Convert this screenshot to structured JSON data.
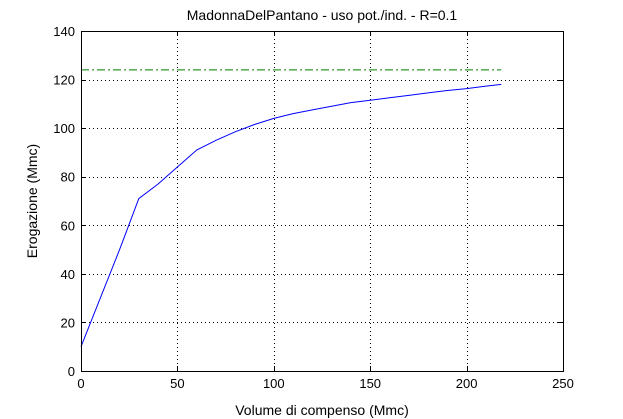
{
  "chart_data": {
    "type": "line",
    "title": "MadonnaDelPantano  -  uso pot./ind.  -   R=0.1",
    "xlabel": "Volume di compenso (Mmc)",
    "ylabel": "Erogazione (Mmc)",
    "xlim": [
      0,
      250
    ],
    "ylim": [
      0,
      140
    ],
    "xticks": [
      0,
      50,
      100,
      150,
      200,
      250
    ],
    "yticks": [
      0,
      20,
      40,
      60,
      80,
      100,
      120,
      140
    ],
    "grid": true,
    "series": [
      {
        "color": "#0000ff",
        "style": "solid",
        "x": [
          0,
          10,
          20,
          30,
          40,
          50,
          60,
          70,
          80,
          90,
          100,
          110,
          120,
          130,
          140,
          150,
          160,
          170,
          180,
          190,
          200,
          210,
          218
        ],
        "y": [
          10,
          30,
          50,
          71,
          77,
          84,
          91,
          95,
          98.5,
          101.5,
          104,
          106,
          107.5,
          109,
          110.5,
          111.5,
          112.5,
          113.5,
          114.5,
          115.5,
          116.3,
          117.3,
          118
        ]
      },
      {
        "color": "#008000",
        "style": "dashdot",
        "x": [
          0,
          218
        ],
        "y": [
          124,
          124
        ]
      }
    ]
  }
}
